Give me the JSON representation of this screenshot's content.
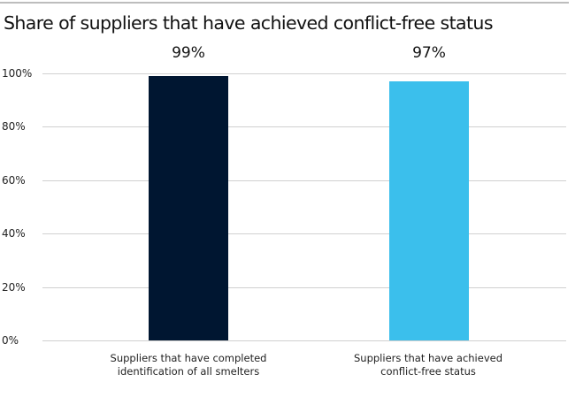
{
  "chart_data": {
    "type": "bar",
    "title": "Share of suppliers that have achieved conflict-free status",
    "categories": [
      "Suppliers that have completed identification of all smelters",
      "Suppliers that have achieved conflict-free status"
    ],
    "category_lines": [
      [
        "Suppliers that have completed",
        "identification of all smelters"
      ],
      [
        "Suppliers that have achieved",
        "conflict-free status"
      ]
    ],
    "values": [
      99,
      97
    ],
    "value_labels": [
      "99%",
      "97%"
    ],
    "colors": [
      "#001631",
      "#3bbfec"
    ],
    "xlabel": "",
    "ylabel": "",
    "ylim": [
      0,
      100
    ],
    "yticks": [
      "0%",
      "20%",
      "40%",
      "60%",
      "80%",
      "100%"
    ],
    "grid": true,
    "legend": "none"
  }
}
